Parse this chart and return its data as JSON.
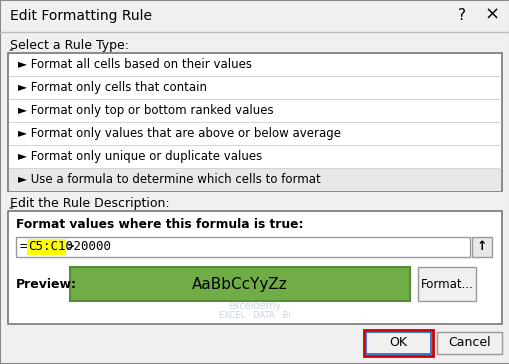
{
  "title": "Edit Formatting Rule",
  "bg_color": "#f0f0f0",
  "white": "#ffffff",
  "rule_type_label": "Select a Rule Type:",
  "rule_items": [
    "► Format all cells based on their values",
    "► Format only cells that contain",
    "► Format only top or bottom ranked values",
    "► Format only values that are above or below average",
    "► Format only unique or duplicate values",
    "► Use a formula to determine which cells to format"
  ],
  "selected_item_index": 5,
  "selected_item_bg": "#e8e8e8",
  "desc_label": "Edit the Rule Description:",
  "formula_label": "Format values where this formula is true:",
  "formula_prefix": "=",
  "formula_highlight": "C5:C10",
  "formula_suffix": ">20000",
  "formula_highlight_color": "#ffff00",
  "preview_label": "Preview:",
  "preview_text": "AaBbCcYyZz",
  "preview_bg": "#70ad47",
  "preview_border": "#5a8a37",
  "ok_label": "OK",
  "cancel_label": "Cancel",
  "format_label": "Format...",
  "ok_red_border": "#cc0000",
  "ok_blue_border": "#2060c0",
  "watermark_line1": "exceldemy",
  "watermark_line2": "EXCEL · DATA · BI",
  "border_dark": "#777777",
  "border_light": "#cccccc",
  "label_color": "#cc0000",
  "text_color": "#000000"
}
